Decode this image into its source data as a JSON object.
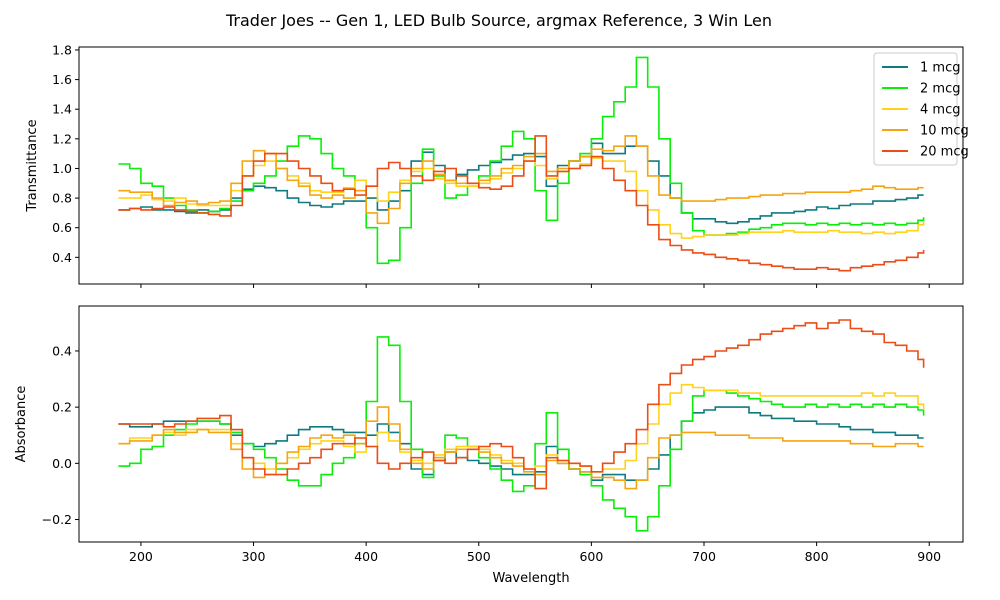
{
  "chart_data": {
    "title": "Trader Joes -- Gen 1, LED Bulb Source, argmax Reference, 3 Win Len",
    "type": "line",
    "step": true,
    "x_ticks": [
      200,
      300,
      400,
      500,
      600,
      700,
      800,
      900
    ],
    "xlim": [
      145,
      930
    ],
    "xlabel": "Wavelength",
    "legend": {
      "placement": "top-right",
      "subplot": "top"
    },
    "series_styles": [
      {
        "name": "1 mcg",
        "color": "#0f7b80"
      },
      {
        "name": "2 mcg",
        "color": "#0aee0a"
      },
      {
        "name": "4 mcg",
        "color": "#ffd21e"
      },
      {
        "name": "10 mcg",
        "color": "#f5a511"
      },
      {
        "name": "20 mcg",
        "color": "#ec4d17"
      }
    ],
    "subplots": [
      {
        "id": "top",
        "ylabel": "Transmittance",
        "ylim": [
          0.22,
          1.82
        ],
        "y_ticks": [
          0.4,
          0.6,
          0.8,
          1.0,
          1.2,
          1.4,
          1.6,
          1.8
        ],
        "y_tick_labels": [
          "0.4",
          "0.6",
          "0.8",
          "1.0",
          "1.2",
          "1.4",
          "1.6",
          "1.8"
        ],
        "x_tick_labels_visible": false,
        "x": [
          180,
          190,
          200,
          210,
          220,
          230,
          240,
          250,
          260,
          270,
          280,
          290,
          300,
          310,
          320,
          330,
          340,
          350,
          360,
          370,
          380,
          390,
          400,
          410,
          420,
          430,
          440,
          450,
          460,
          470,
          480,
          490,
          500,
          510,
          520,
          530,
          540,
          550,
          560,
          570,
          580,
          590,
          600,
          610,
          620,
          630,
          640,
          650,
          660,
          670,
          680,
          690,
          700,
          710,
          720,
          730,
          740,
          750,
          760,
          770,
          780,
          790,
          800,
          810,
          820,
          830,
          840,
          850,
          860,
          870,
          880,
          890,
          895
        ],
        "series": [
          {
            "name": "1 mcg",
            "values": [
              0.72,
              0.73,
              0.74,
              0.72,
              0.72,
              0.71,
              0.7,
              0.72,
              0.71,
              0.72,
              0.8,
              0.86,
              0.88,
              0.87,
              0.85,
              0.8,
              0.77,
              0.75,
              0.74,
              0.76,
              0.78,
              0.78,
              0.8,
              0.72,
              0.78,
              0.85,
              1.05,
              1.11,
              1.02,
              0.92,
              0.96,
              0.99,
              1.02,
              1.04,
              1.06,
              1.09,
              1.1,
              1.08,
              0.88,
              1.02,
              1.05,
              1.08,
              1.17,
              1.1,
              1.1,
              1.15,
              1.15,
              1.05,
              0.95,
              0.8,
              0.7,
              0.66,
              0.66,
              0.64,
              0.63,
              0.64,
              0.66,
              0.68,
              0.7,
              0.7,
              0.71,
              0.72,
              0.74,
              0.73,
              0.75,
              0.76,
              0.76,
              0.78,
              0.78,
              0.79,
              0.8,
              0.82,
              0.82
            ]
          },
          {
            "name": "2 mcg",
            "values": [
              1.03,
              1.0,
              0.9,
              0.88,
              0.8,
              0.75,
              0.72,
              0.7,
              0.71,
              0.73,
              0.78,
              0.85,
              0.9,
              0.95,
              1.05,
              1.15,
              1.22,
              1.2,
              1.1,
              1.0,
              0.95,
              0.85,
              0.6,
              0.36,
              0.38,
              0.6,
              0.9,
              1.13,
              0.95,
              0.8,
              0.82,
              0.88,
              0.95,
              1.05,
              1.15,
              1.25,
              1.2,
              0.85,
              0.65,
              0.9,
              1.05,
              1.1,
              1.2,
              1.35,
              1.45,
              1.55,
              1.75,
              1.55,
              1.2,
              0.9,
              0.7,
              0.58,
              0.55,
              0.55,
              0.56,
              0.57,
              0.59,
              0.6,
              0.62,
              0.63,
              0.63,
              0.62,
              0.63,
              0.62,
              0.63,
              0.62,
              0.63,
              0.62,
              0.63,
              0.62,
              0.63,
              0.65,
              0.67
            ]
          },
          {
            "name": "4 mcg",
            "values": [
              0.8,
              0.8,
              0.82,
              0.79,
              0.78,
              0.8,
              0.76,
              0.75,
              0.75,
              0.75,
              0.85,
              0.95,
              1.02,
              1.05,
              1.0,
              0.95,
              0.9,
              0.85,
              0.84,
              0.84,
              0.87,
              0.92,
              0.88,
              0.78,
              0.84,
              0.92,
              0.98,
              1.0,
              0.93,
              0.9,
              0.88,
              0.88,
              0.9,
              0.93,
              0.97,
              1.0,
              1.05,
              1.02,
              0.93,
              0.98,
              1.0,
              1.03,
              1.07,
              1.05,
              1.05,
              0.98,
              0.85,
              0.72,
              0.62,
              0.56,
              0.53,
              0.54,
              0.55,
              0.55,
              0.55,
              0.56,
              0.57,
              0.57,
              0.57,
              0.58,
              0.57,
              0.57,
              0.57,
              0.58,
              0.57,
              0.57,
              0.56,
              0.57,
              0.56,
              0.57,
              0.58,
              0.62,
              0.64
            ]
          },
          {
            "name": "10 mcg",
            "values": [
              0.85,
              0.84,
              0.84,
              0.8,
              0.75,
              0.77,
              0.78,
              0.76,
              0.77,
              0.78,
              0.9,
              1.05,
              1.12,
              1.1,
              1.0,
              0.92,
              0.88,
              0.82,
              0.8,
              0.82,
              0.8,
              0.85,
              0.7,
              0.63,
              0.73,
              0.9,
              1.0,
              1.05,
              0.96,
              0.92,
              0.9,
              0.9,
              0.92,
              0.95,
              1.0,
              1.02,
              1.08,
              1.1,
              0.98,
              1.0,
              1.05,
              1.08,
              1.13,
              1.12,
              1.15,
              1.22,
              1.15,
              0.95,
              0.82,
              0.8,
              0.78,
              0.78,
              0.78,
              0.79,
              0.8,
              0.8,
              0.81,
              0.82,
              0.82,
              0.83,
              0.83,
              0.84,
              0.84,
              0.84,
              0.84,
              0.85,
              0.86,
              0.88,
              0.87,
              0.86,
              0.86,
              0.87,
              0.87
            ]
          },
          {
            "name": "20 mcg",
            "values": [
              0.72,
              0.73,
              0.72,
              0.73,
              0.74,
              0.72,
              0.71,
              0.7,
              0.69,
              0.68,
              0.75,
              0.95,
              1.05,
              1.1,
              1.1,
              1.05,
              1.0,
              0.95,
              0.9,
              0.85,
              0.86,
              0.82,
              0.88,
              1.0,
              1.04,
              1.0,
              0.95,
              0.92,
              0.98,
              1.0,
              0.95,
              0.9,
              0.87,
              0.86,
              0.88,
              0.95,
              1.05,
              1.22,
              0.95,
              0.98,
              1.0,
              1.02,
              1.08,
              1.0,
              0.92,
              0.85,
              0.75,
              0.62,
              0.52,
              0.48,
              0.45,
              0.43,
              0.42,
              0.4,
              0.39,
              0.38,
              0.36,
              0.35,
              0.34,
              0.33,
              0.32,
              0.32,
              0.33,
              0.32,
              0.31,
              0.33,
              0.34,
              0.35,
              0.37,
              0.38,
              0.4,
              0.43,
              0.45
            ]
          }
        ]
      },
      {
        "id": "bottom",
        "ylabel": "Absorbance",
        "ylim": [
          -0.28,
          0.56
        ],
        "y_ticks": [
          -0.2,
          0.0,
          0.2,
          0.4
        ],
        "y_tick_labels": [
          "−0.2",
          "0.0",
          "0.2",
          "0.4"
        ],
        "x_tick_labels_visible": true,
        "x": [
          180,
          190,
          200,
          210,
          220,
          230,
          240,
          250,
          260,
          270,
          280,
          290,
          300,
          310,
          320,
          330,
          340,
          350,
          360,
          370,
          380,
          390,
          400,
          410,
          420,
          430,
          440,
          450,
          460,
          470,
          480,
          490,
          500,
          510,
          520,
          530,
          540,
          550,
          560,
          570,
          580,
          590,
          600,
          610,
          620,
          630,
          640,
          650,
          660,
          670,
          680,
          690,
          700,
          710,
          720,
          730,
          740,
          750,
          760,
          770,
          780,
          790,
          800,
          810,
          820,
          830,
          840,
          850,
          860,
          870,
          880,
          890,
          895
        ],
        "series": [
          {
            "name": "1 mcg",
            "values": [
              0.14,
              0.13,
              0.13,
              0.14,
              0.15,
              0.15,
              0.15,
              0.15,
              0.15,
              0.14,
              0.1,
              0.07,
              0.06,
              0.07,
              0.08,
              0.1,
              0.12,
              0.13,
              0.13,
              0.12,
              0.11,
              0.11,
              0.1,
              0.14,
              0.11,
              0.07,
              -0.02,
              -0.04,
              0.01,
              0.04,
              0.02,
              0.01,
              0.0,
              -0.01,
              -0.02,
              -0.04,
              -0.04,
              -0.03,
              0.06,
              0.0,
              -0.02,
              -0.03,
              -0.06,
              -0.04,
              -0.04,
              -0.06,
              -0.06,
              -0.02,
              0.03,
              0.1,
              0.15,
              0.18,
              0.19,
              0.2,
              0.2,
              0.2,
              0.18,
              0.17,
              0.16,
              0.16,
              0.15,
              0.15,
              0.14,
              0.14,
              0.13,
              0.12,
              0.12,
              0.11,
              0.11,
              0.1,
              0.1,
              0.09,
              0.09
            ]
          },
          {
            "name": "2 mcg",
            "values": [
              -0.01,
              0.0,
              0.05,
              0.06,
              0.1,
              0.12,
              0.14,
              0.15,
              0.15,
              0.14,
              0.11,
              0.07,
              0.05,
              0.02,
              -0.02,
              -0.06,
              -0.08,
              -0.08,
              -0.04,
              0.0,
              0.02,
              0.07,
              0.22,
              0.45,
              0.42,
              0.22,
              0.05,
              -0.05,
              0.02,
              0.1,
              0.09,
              0.06,
              0.02,
              -0.02,
              -0.06,
              -0.1,
              -0.08,
              0.07,
              0.18,
              0.05,
              -0.02,
              -0.04,
              -0.08,
              -0.13,
              -0.16,
              -0.19,
              -0.24,
              -0.19,
              -0.08,
              0.05,
              0.15,
              0.24,
              0.26,
              0.26,
              0.25,
              0.24,
              0.23,
              0.22,
              0.21,
              0.2,
              0.2,
              0.21,
              0.2,
              0.21,
              0.2,
              0.21,
              0.2,
              0.21,
              0.2,
              0.21,
              0.2,
              0.19,
              0.17
            ]
          },
          {
            "name": "4 mcg",
            "values": [
              0.07,
              0.09,
              0.09,
              0.1,
              0.11,
              0.1,
              0.12,
              0.12,
              0.12,
              0.12,
              0.07,
              0.02,
              0.0,
              -0.02,
              0.0,
              0.02,
              0.05,
              0.07,
              0.08,
              0.08,
              0.06,
              0.04,
              0.06,
              0.11,
              0.08,
              0.04,
              0.01,
              0.0,
              0.03,
              0.05,
              0.06,
              0.06,
              0.05,
              0.03,
              0.01,
              0.0,
              -0.02,
              -0.01,
              0.03,
              0.01,
              0.0,
              -0.01,
              -0.03,
              -0.02,
              -0.02,
              0.01,
              0.07,
              0.14,
              0.21,
              0.25,
              0.28,
              0.27,
              0.26,
              0.26,
              0.26,
              0.25,
              0.25,
              0.24,
              0.24,
              0.24,
              0.24,
              0.24,
              0.24,
              0.24,
              0.24,
              0.24,
              0.25,
              0.24,
              0.25,
              0.24,
              0.24,
              0.21,
              0.19
            ]
          },
          {
            "name": "10 mcg",
            "values": [
              0.07,
              0.08,
              0.08,
              0.1,
              0.12,
              0.11,
              0.11,
              0.12,
              0.11,
              0.11,
              0.05,
              -0.02,
              -0.05,
              -0.04,
              0.0,
              0.04,
              0.06,
              0.09,
              0.1,
              0.09,
              0.1,
              0.07,
              0.15,
              0.2,
              0.14,
              0.05,
              0.0,
              -0.02,
              0.02,
              0.04,
              0.05,
              0.05,
              0.04,
              0.02,
              0.0,
              -0.01,
              -0.03,
              -0.04,
              0.01,
              0.0,
              -0.02,
              -0.03,
              -0.05,
              -0.05,
              -0.06,
              -0.09,
              -0.06,
              0.02,
              0.09,
              0.1,
              0.11,
              0.11,
              0.11,
              0.1,
              0.1,
              0.1,
              0.09,
              0.09,
              0.09,
              0.08,
              0.08,
              0.08,
              0.08,
              0.08,
              0.08,
              0.07,
              0.07,
              0.06,
              0.06,
              0.07,
              0.07,
              0.06,
              0.06
            ]
          },
          {
            "name": "20 mcg",
            "values": [
              0.14,
              0.14,
              0.14,
              0.14,
              0.13,
              0.14,
              0.15,
              0.16,
              0.16,
              0.17,
              0.12,
              0.02,
              -0.02,
              -0.04,
              -0.04,
              -0.02,
              0.0,
              0.02,
              0.05,
              0.07,
              0.07,
              0.09,
              0.06,
              0.0,
              -0.02,
              0.0,
              0.02,
              0.04,
              0.01,
              0.0,
              0.02,
              0.05,
              0.06,
              0.07,
              0.06,
              0.02,
              -0.02,
              -0.09,
              0.02,
              0.01,
              0.0,
              -0.01,
              -0.03,
              0.0,
              0.04,
              0.07,
              0.12,
              0.21,
              0.28,
              0.32,
              0.35,
              0.37,
              0.38,
              0.4,
              0.41,
              0.42,
              0.44,
              0.46,
              0.47,
              0.48,
              0.49,
              0.5,
              0.48,
              0.5,
              0.51,
              0.48,
              0.47,
              0.46,
              0.43,
              0.42,
              0.4,
              0.37,
              0.34
            ]
          }
        ]
      }
    ]
  }
}
